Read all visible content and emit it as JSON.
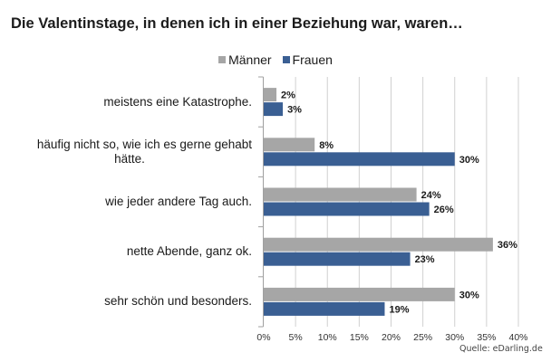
{
  "chart_data": {
    "type": "bar",
    "orientation": "horizontal",
    "title": "Die Valentinstage, in denen ich in einer Beziehung war, waren…",
    "categories": [
      "meistens eine Katastrophe.",
      "häufig nicht so, wie ich es gerne gehabt hätte.",
      "wie jeder andere Tag auch.",
      "nette Abende, ganz ok.",
      "sehr schön und besonders."
    ],
    "category_lines": [
      [
        "meistens eine Katastrophe."
      ],
      [
        "häufig nicht so, wie ich es gerne gehabt",
        "hätte."
      ],
      [
        "wie jeder andere Tag auch."
      ],
      [
        "nette Abende, ganz ok."
      ],
      [
        "sehr schön und besonders."
      ]
    ],
    "series": [
      {
        "name": "Männer",
        "color": "#a6a6a6",
        "values": [
          2,
          8,
          24,
          36,
          30
        ],
        "labels": [
          "2%",
          "8%",
          "24%",
          "36%",
          "30%"
        ]
      },
      {
        "name": "Frauen",
        "color": "#3a5f93",
        "values": [
          3,
          30,
          26,
          23,
          19
        ],
        "labels": [
          "3%",
          "30%",
          "26%",
          "23%",
          "19%"
        ]
      }
    ],
    "xlim": [
      0,
      40
    ],
    "xticks": [
      0,
      5,
      10,
      15,
      20,
      25,
      30,
      35,
      40
    ],
    "xtick_labels": [
      "0%",
      "5%",
      "10%",
      "15%",
      "20%",
      "25%",
      "30%",
      "35%",
      "40%"
    ],
    "grid": true,
    "legend": "top-center",
    "xlabel": "",
    "ylabel": ""
  },
  "source": "Quelle: eDarling.de"
}
